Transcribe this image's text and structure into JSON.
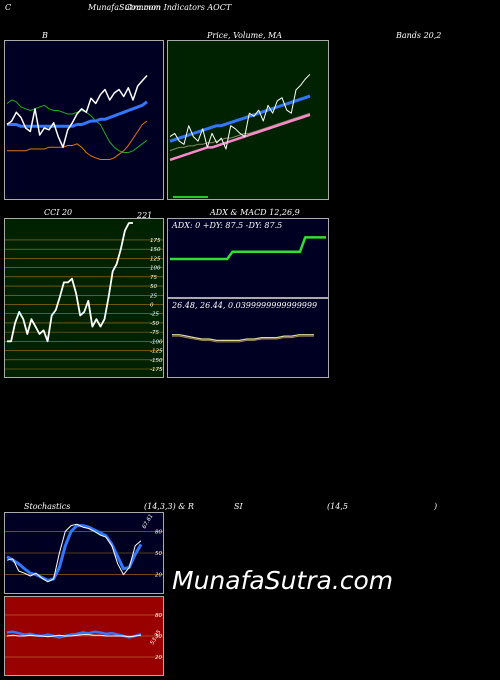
{
  "header": {
    "left": "C",
    "center": "MunafaSutra.com",
    "center2": "Common Indicators AOCT"
  },
  "labels": {
    "b": "B",
    "price": "Price,  Volume,  MA",
    "bands": "Bands 20,2",
    "cci": "CCI 20",
    "adx": "ADX  & MACD 12,26,9",
    "stoch": "Stochastics",
    "stoch_params": "(14,3,3) & R",
    "si": "SI",
    "rsi_params": "(14,5",
    "rsi_close": ")"
  },
  "cci": {
    "top_value": "221",
    "ticks": [
      "175",
      "150",
      "125",
      "100",
      "75",
      "50",
      "25",
      "0",
      "-25",
      "-50",
      "-75",
      "-100",
      "-125",
      "-150",
      "-175"
    ]
  },
  "adx_text": "ADX: 0  +DY: 87.5 -DY: 87.5",
  "macd_text": "26.48,  26.44,  0.0399999999999999",
  "stoch_ticks": [
    "80",
    "50",
    "20"
  ],
  "stoch_value": "67.61",
  "rsi_ticks": [
    "80",
    "50",
    "20"
  ],
  "rsi_value": "53.35",
  "watermark": "MunafaSutra.com",
  "colors": {
    "bands_bg": "#000022",
    "price_bg": "#002200",
    "cci_bg": "#002200",
    "adx_bg": "#000022",
    "stoch_bg": "#000022",
    "rsi_bg": "#990000"
  },
  "chart_data": [
    {
      "type": "line",
      "name": "bollinger",
      "series": [
        {
          "values": [
            50,
            52,
            51,
            48,
            47,
            46,
            47,
            48,
            49,
            47,
            46,
            46,
            45,
            44,
            44,
            45,
            46,
            45,
            43,
            40,
            38,
            33,
            28,
            25,
            23,
            22,
            22,
            23,
            25,
            27,
            29
          ]
        },
        {
          "values": [
            38,
            38,
            38,
            37,
            37,
            37,
            37,
            37,
            37,
            37,
            37,
            37,
            37,
            37,
            37,
            38,
            38,
            39,
            40,
            40,
            41,
            41,
            42,
            43,
            44,
            45,
            46,
            47,
            48,
            49,
            51
          ]
        },
        {
          "values": [
            23,
            23,
            23,
            23,
            23,
            24,
            24,
            24,
            24,
            25,
            25,
            25,
            25,
            26,
            26,
            27,
            25,
            22,
            20,
            19,
            18,
            18,
            18,
            19,
            21,
            23,
            26,
            30,
            34,
            38,
            40
          ]
        },
        {
          "values": [
            38,
            40,
            45,
            42,
            36,
            34,
            47,
            32,
            36,
            35,
            39,
            31,
            25,
            35,
            39,
            44,
            47,
            45,
            53,
            50,
            55,
            58,
            52,
            56,
            58,
            54,
            59,
            52,
            60,
            63,
            66
          ]
        }
      ]
    },
    {
      "type": "line",
      "name": "price_volume_ma",
      "series": [
        {
          "values": [
            52,
            53,
            54,
            55,
            56,
            57,
            58,
            59,
            60,
            61,
            62,
            62,
            63,
            64,
            65,
            66,
            67,
            68,
            69,
            70,
            71,
            72,
            73,
            74,
            75,
            76,
            77,
            78,
            79,
            80,
            81
          ]
        },
        {
          "values": [
            46,
            47,
            48,
            48,
            49,
            49,
            50,
            50,
            51,
            51,
            52,
            53,
            54,
            54,
            55,
            56,
            57,
            57,
            58,
            59,
            60,
            61,
            62,
            63,
            64,
            65,
            66,
            67,
            68,
            69,
            70
          ]
        },
        {
          "values": [
            40,
            41,
            42,
            43,
            44,
            45,
            46,
            47,
            48,
            48,
            49,
            50,
            51,
            52,
            53,
            54,
            55,
            56,
            57,
            58,
            59,
            60,
            61,
            62,
            63,
            64,
            65,
            66,
            67,
            68,
            69
          ]
        },
        {
          "values": [
            55,
            57,
            52,
            50,
            62,
            55,
            52,
            60,
            48,
            57,
            51,
            54,
            47,
            62,
            60,
            57,
            55,
            70,
            68,
            72,
            65,
            75,
            70,
            78,
            80,
            72,
            70,
            85,
            88,
            92,
            95
          ]
        }
      ]
    },
    {
      "type": "line",
      "name": "cci",
      "ylim": [
        -175,
        221
      ],
      "values": [
        -100,
        -100,
        -50,
        -20,
        -40,
        -80,
        -40,
        -60,
        -80,
        -70,
        -100,
        -30,
        -15,
        20,
        60,
        60,
        70,
        30,
        -30,
        -20,
        10,
        -60,
        -40,
        -60,
        -40,
        20,
        90,
        110,
        150,
        200,
        221,
        221
      ]
    },
    {
      "type": "line",
      "name": "adx",
      "values": [
        25,
        25,
        25,
        25,
        25,
        25,
        25,
        25,
        25,
        25,
        25,
        25,
        30,
        30,
        30,
        30,
        30,
        30,
        30,
        30,
        30,
        30,
        30,
        30,
        30,
        30,
        40,
        40,
        40,
        40,
        40
      ]
    },
    {
      "type": "line",
      "name": "macd",
      "values": [
        26.48,
        26.48,
        26.47,
        26.46,
        26.45,
        26.45,
        26.44,
        26.44,
        26.44,
        26.44,
        26.45,
        26.45,
        26.46,
        26.46,
        26.46,
        26.47,
        26.47,
        26.48,
        26.48,
        26.48
      ]
    },
    {
      "type": "line",
      "name": "stochastics",
      "ylim": [
        0,
        100
      ],
      "series": [
        {
          "values": [
            40,
            42,
            25,
            22,
            18,
            22,
            15,
            10,
            14,
            50,
            80,
            88,
            90,
            86,
            84,
            80,
            75,
            72,
            60,
            35,
            20,
            30,
            60,
            67
          ]
        },
        {
          "values": [
            45,
            40,
            35,
            28,
            22,
            20,
            16,
            12,
            14,
            30,
            60,
            80,
            88,
            88,
            86,
            82,
            78,
            74,
            62,
            45,
            28,
            30,
            48,
            62
          ]
        }
      ]
    },
    {
      "type": "line",
      "name": "rsi",
      "ylim": [
        0,
        100
      ],
      "series": [
        {
          "values": [
            55,
            56,
            54,
            52,
            53,
            51,
            50,
            52,
            50,
            48,
            50,
            52,
            53,
            55,
            54,
            56,
            55,
            53,
            54,
            52,
            50,
            48,
            50,
            53
          ]
        },
        {
          "values": [
            50,
            51,
            50,
            50,
            51,
            50,
            50,
            49,
            50,
            51,
            50,
            50,
            51,
            52,
            52,
            51,
            51,
            50,
            50,
            50,
            50,
            49,
            50,
            51
          ]
        }
      ]
    }
  ]
}
